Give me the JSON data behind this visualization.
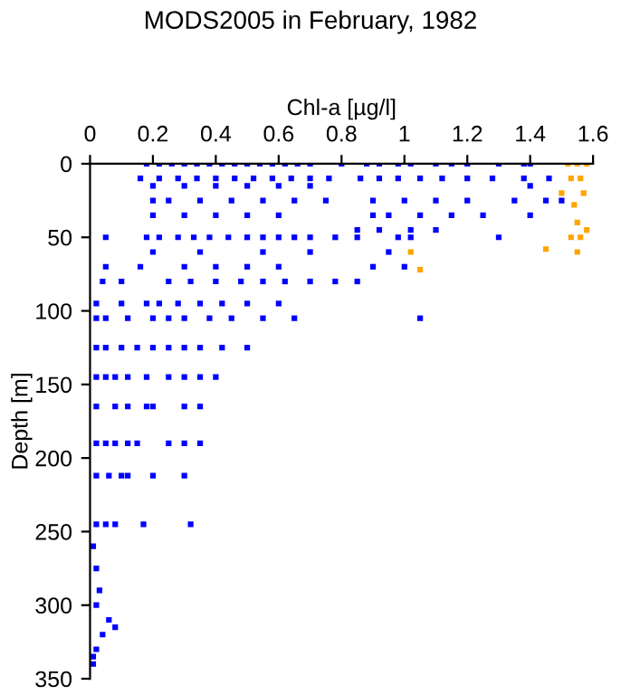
{
  "chart_data": {
    "type": "scatter",
    "title": "MODS2005 in February, 1982",
    "xlabel": "Chl-a [µg/l]",
    "ylabel": "Depth [m]",
    "xlim": [
      0,
      1.6
    ],
    "xticks": [
      0,
      0.2,
      0.4,
      0.6,
      0.8,
      1,
      1.2,
      1.4,
      1.6
    ],
    "ylim": [
      350,
      0
    ],
    "yticks": [
      0,
      50,
      100,
      150,
      200,
      250,
      300,
      350
    ],
    "marker": "square",
    "grid": false,
    "legend": false,
    "series": [
      {
        "color": "#0000ff",
        "x": [
          0.18,
          0.22,
          0.26,
          0.3,
          0.34,
          0.38,
          0.42,
          0.46,
          0.5,
          0.54,
          0.58,
          0.62,
          0.66,
          0.7,
          0.8,
          0.88,
          0.92,
          0.98,
          1.02,
          1.1,
          1.15,
          1.2,
          1.3,
          1.38,
          1.4,
          0.16,
          0.22,
          0.28,
          0.34,
          0.4,
          0.46,
          0.52,
          0.58,
          0.64,
          0.7,
          0.76,
          0.86,
          0.92,
          0.98,
          1.05,
          1.12,
          1.2,
          1.28,
          1.38,
          1.46,
          0.2,
          0.3,
          0.4,
          0.5,
          0.6,
          0.7,
          1.4,
          0.2,
          0.25,
          0.35,
          0.45,
          0.55,
          0.65,
          0.75,
          0.9,
          1.0,
          1.1,
          1.2,
          1.35,
          1.45,
          1.5,
          0.2,
          0.3,
          0.4,
          0.5,
          0.6,
          0.9,
          0.95,
          1.05,
          1.15,
          1.25,
          1.4,
          0.85,
          0.92,
          1.02,
          1.1,
          0.05,
          0.18,
          0.22,
          0.28,
          0.33,
          0.38,
          0.44,
          0.5,
          0.55,
          0.6,
          0.65,
          0.7,
          0.78,
          0.85,
          0.98,
          1.02,
          1.3,
          0.2,
          0.35,
          0.55,
          0.7,
          0.95,
          0.05,
          0.16,
          0.3,
          0.4,
          0.5,
          0.6,
          0.9,
          1.0,
          0.04,
          0.1,
          0.25,
          0.32,
          0.4,
          0.48,
          0.55,
          0.62,
          0.7,
          0.78,
          0.85,
          0.02,
          0.1,
          0.18,
          0.22,
          0.28,
          0.35,
          0.42,
          0.5,
          0.6,
          0.02,
          0.05,
          0.12,
          0.2,
          0.25,
          0.3,
          0.38,
          0.45,
          0.55,
          0.65,
          1.05,
          0.02,
          0.05,
          0.1,
          0.15,
          0.2,
          0.25,
          0.3,
          0.35,
          0.42,
          0.5,
          0.02,
          0.05,
          0.08,
          0.12,
          0.18,
          0.25,
          0.3,
          0.35,
          0.4,
          0.02,
          0.08,
          0.12,
          0.18,
          0.2,
          0.3,
          0.35,
          0.02,
          0.05,
          0.08,
          0.12,
          0.15,
          0.25,
          0.3,
          0.35,
          0.02,
          0.06,
          0.1,
          0.12,
          0.2,
          0.3,
          0.02,
          0.05,
          0.08,
          0.17,
          0.32,
          0.01,
          0.02,
          0.03,
          0.02,
          0.04,
          0.02,
          0.01,
          0.06,
          0.08,
          0.01
        ],
        "values": [
          0,
          0,
          0,
          0,
          0,
          0,
          0,
          0,
          0,
          0,
          0,
          0,
          0,
          0,
          0,
          0,
          0,
          0,
          0,
          0,
          0,
          0,
          0,
          0,
          0,
          10,
          10,
          10,
          10,
          10,
          10,
          10,
          10,
          10,
          10,
          10,
          10,
          10,
          10,
          10,
          10,
          10,
          10,
          10,
          10,
          15,
          15,
          15,
          15,
          15,
          15,
          15,
          25,
          25,
          25,
          25,
          25,
          25,
          25,
          25,
          25,
          25,
          25,
          25,
          25,
          25,
          35,
          35,
          35,
          35,
          35,
          35,
          35,
          35,
          35,
          35,
          35,
          45,
          45,
          45,
          45,
          50,
          50,
          50,
          50,
          50,
          50,
          50,
          50,
          50,
          50,
          50,
          50,
          50,
          50,
          50,
          50,
          50,
          60,
          60,
          60,
          60,
          60,
          70,
          70,
          70,
          70,
          70,
          70,
          70,
          70,
          80,
          80,
          80,
          80,
          80,
          80,
          80,
          80,
          80,
          80,
          80,
          95,
          95,
          95,
          95,
          95,
          95,
          95,
          95,
          95,
          105,
          105,
          105,
          105,
          105,
          105,
          105,
          105,
          105,
          105,
          105,
          125,
          125,
          125,
          125,
          125,
          125,
          125,
          125,
          125,
          125,
          145,
          145,
          145,
          145,
          145,
          145,
          145,
          145,
          145,
          165,
          165,
          165,
          165,
          165,
          165,
          165,
          190,
          190,
          190,
          190,
          190,
          190,
          190,
          190,
          212,
          212,
          212,
          212,
          212,
          212,
          245,
          245,
          245,
          245,
          245,
          260,
          275,
          290,
          300,
          320,
          330,
          340,
          310,
          315,
          335
        ]
      },
      {
        "color": "#ffa500",
        "x": [
          1.52,
          1.55,
          1.58,
          1.53,
          1.56,
          1.5,
          1.57,
          1.54,
          1.55,
          1.58,
          1.53,
          1.56,
          1.55,
          1.45,
          1.02,
          1.05
        ],
        "values": [
          0,
          0,
          0,
          10,
          10,
          20,
          20,
          28,
          40,
          45,
          50,
          50,
          60,
          58,
          60,
          72
        ]
      }
    ]
  }
}
